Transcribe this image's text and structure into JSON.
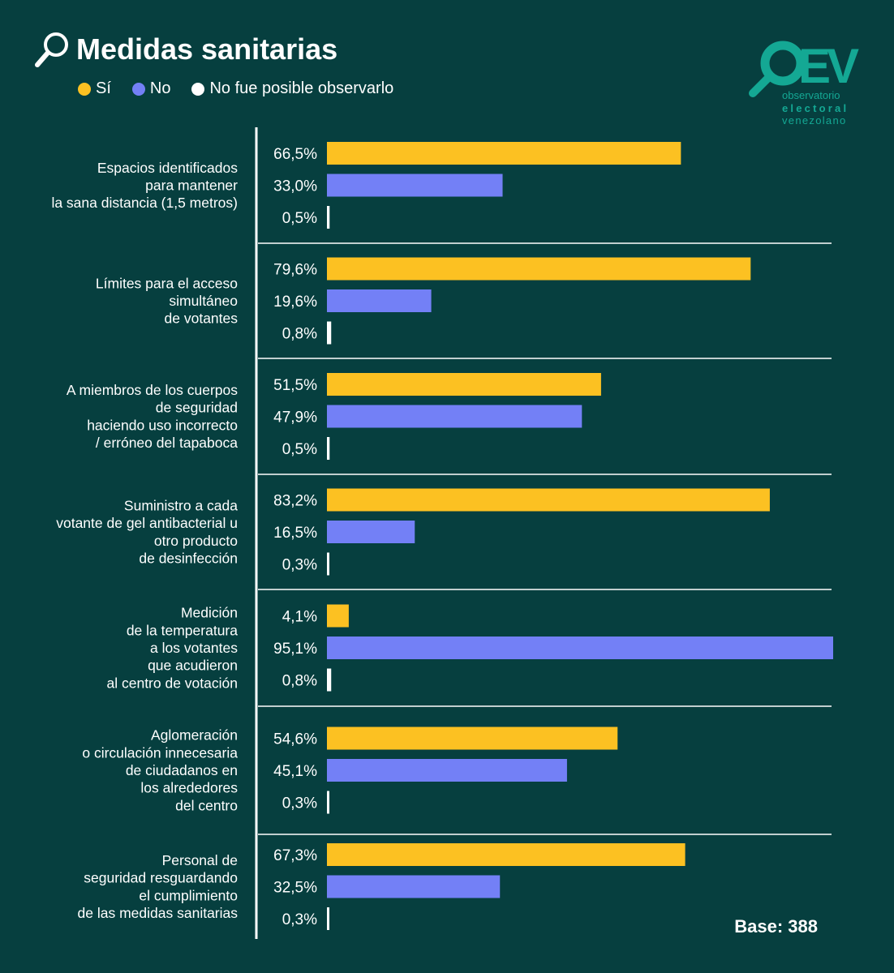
{
  "title": "Medidas sanitarias",
  "legend": [
    {
      "label": "Sí",
      "color": "#fcc122"
    },
    {
      "label": "No",
      "color": "#7380f6"
    },
    {
      "label": "No fue posible observarlo",
      "color": "#ffffff"
    }
  ],
  "logo": {
    "mark": "OEV",
    "lines": [
      "observatorio",
      "electoral",
      "venezolano"
    ],
    "color": "#14a894"
  },
  "base_label": "Base: 388",
  "chart_data": {
    "type": "bar",
    "orientation": "horizontal",
    "title": "Medidas sanitarias",
    "unit": "%",
    "categories": [
      [
        "Espacios identificados",
        "para mantener",
        "la sana distancia (1,5 metros)"
      ],
      [
        "Límites para el acceso",
        "simultáneo",
        "de votantes"
      ],
      [
        "A miembros de los cuerpos",
        "de seguridad",
        "haciendo uso incorrecto",
        "/ erróneo del tapaboca"
      ],
      [
        "Suministro a cada",
        "votante de gel antibacterial u",
        "otro producto",
        "de desinfección"
      ],
      [
        "Medición",
        "de la temperatura",
        "a los votantes",
        "que acudieron",
        "al centro de votación"
      ],
      [
        "Aglomeración",
        "o circulación innecesaria",
        "de ciudadanos en",
        "los alrededores",
        "del centro"
      ],
      [
        "Personal de",
        "seguridad resguardando",
        "el cumplimiento",
        "de las medidas sanitarias"
      ]
    ],
    "series": [
      {
        "name": "Sí",
        "color": "#fcc122",
        "values": [
          66.5,
          79.6,
          51.5,
          83.2,
          4.1,
          54.6,
          67.3
        ],
        "labels": [
          "66,5%",
          "79,6%",
          "51,5%",
          "83,2%",
          "4,1%",
          "54,6%",
          "67,3%"
        ]
      },
      {
        "name": "No",
        "color": "#7380f6",
        "values": [
          33.0,
          19.6,
          47.9,
          16.5,
          95.1,
          45.1,
          32.5
        ],
        "labels": [
          "33,0%",
          "19,6%",
          "47,9%",
          "16,5%",
          "95,1%",
          "45,1%",
          "32,5%"
        ]
      },
      {
        "name": "No fue posible observarlo",
        "color": "#ffffff",
        "values": [
          0.5,
          0.8,
          0.5,
          0.3,
          0.8,
          0.3,
          0.3
        ],
        "labels": [
          "0,5%",
          "0,8%",
          "0,5%",
          "0,3%",
          "0,8%",
          "0,3%",
          "0,3%"
        ]
      }
    ],
    "xlim": [
      0,
      95.1
    ],
    "grid": false,
    "legend_position": "top-left"
  }
}
